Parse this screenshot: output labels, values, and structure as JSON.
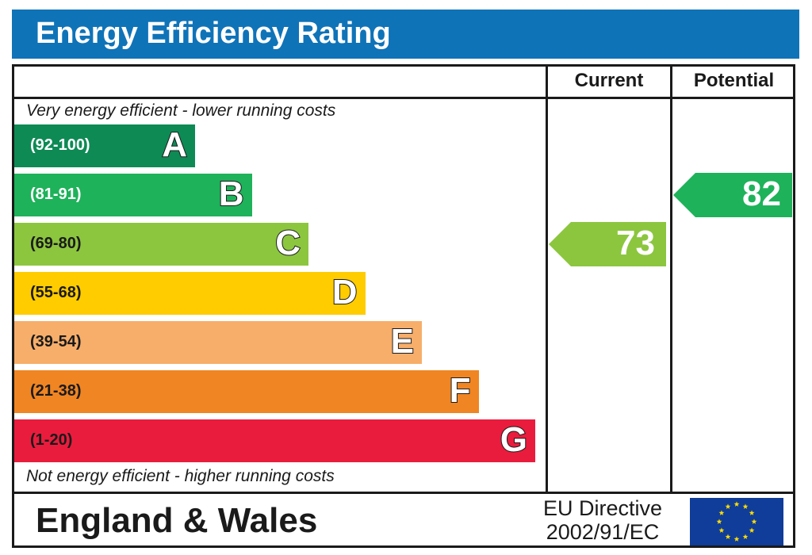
{
  "header": {
    "title": "Energy Efficiency Rating"
  },
  "columns": {
    "current": "Current",
    "potential": "Potential"
  },
  "notes": {
    "top": "Very energy efficient - lower running costs",
    "bottom": "Not energy efficient - higher running costs"
  },
  "chart_data": {
    "type": "bar",
    "title": "Energy Efficiency Rating",
    "categories": [
      "A",
      "B",
      "C",
      "D",
      "E",
      "F",
      "G"
    ],
    "bands": [
      {
        "letter": "A",
        "range": "(92-100)",
        "min": 92,
        "max": 100,
        "color": "#0e8a55"
      },
      {
        "letter": "B",
        "range": "(81-91)",
        "min": 81,
        "max": 91,
        "color": "#1eb25a"
      },
      {
        "letter": "C",
        "range": "(69-80)",
        "min": 69,
        "max": 80,
        "color": "#8cc63f"
      },
      {
        "letter": "D",
        "range": "(55-68)",
        "min": 55,
        "max": 68,
        "color": "#ffcc00"
      },
      {
        "letter": "E",
        "range": "(39-54)",
        "min": 39,
        "max": 54,
        "color": "#f7ae6a"
      },
      {
        "letter": "F",
        "range": "(21-38)",
        "min": 21,
        "max": 38,
        "color": "#f08523"
      },
      {
        "letter": "G",
        "range": "(1-20)",
        "min": 1,
        "max": 20,
        "color": "#ea1c3d"
      }
    ],
    "ratings": {
      "current": {
        "value": 73,
        "band": "C",
        "label": "73",
        "color": "#8cc63f"
      },
      "potential": {
        "value": 82,
        "band": "B",
        "label": "82",
        "color": "#1eb25a"
      }
    }
  },
  "footer": {
    "region": "England & Wales",
    "directive_line1": "EU Directive",
    "directive_line2": "2002/91/EC"
  },
  "flag": {
    "name": "eu-flag",
    "background": "#0f3d99",
    "star_color": "#ffdd00"
  }
}
